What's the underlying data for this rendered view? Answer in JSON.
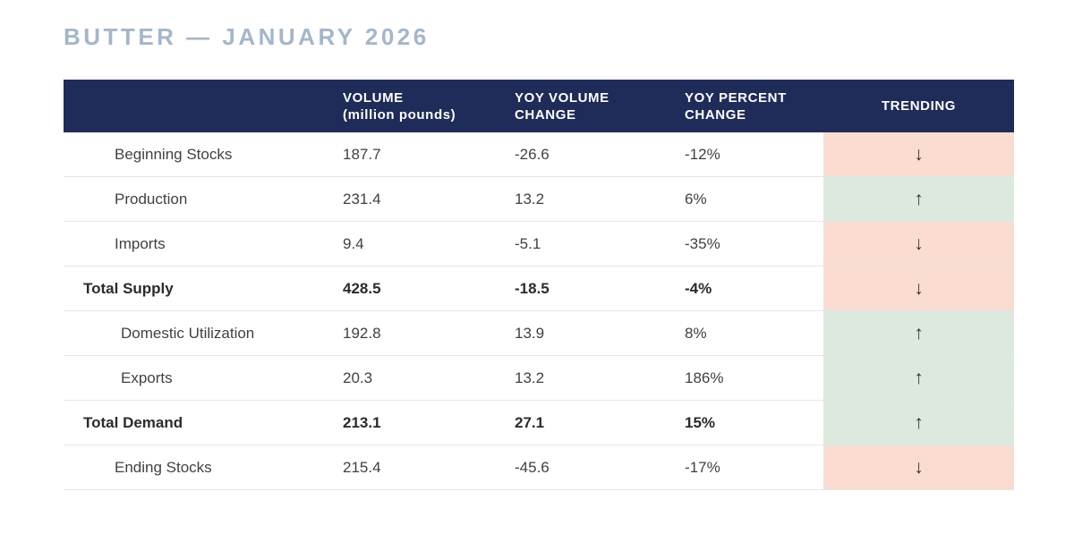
{
  "title": "BUTTER — JANUARY 2026",
  "colors": {
    "header_bg": "#1f2b58",
    "header_text": "#ffffff",
    "title_text": "#a4b6ca",
    "trend_up_bg": "#dce9df",
    "trend_down_bg": "#fadcd1",
    "arrow": "#35302b",
    "row_border": "#e4e7e9",
    "body_text": "#414141"
  },
  "icons": {
    "trend_up": "↑",
    "trend_down": "↓"
  },
  "table_headers": {
    "label": "",
    "volume_line1": "VOLUME",
    "volume_line2": "(million pounds)",
    "yoy_volume_line1": "YOY VOLUME",
    "yoy_volume_line2": "CHANGE",
    "yoy_percent_line1": "YOY PERCENT",
    "yoy_percent_line2": "CHANGE",
    "trending": "TRENDING"
  },
  "chart_data": {
    "type": "table",
    "title": "BUTTER — JANUARY 2026",
    "columns": [
      "",
      "VOLUME (million pounds)",
      "YOY VOLUME CHANGE",
      "YOY PERCENT CHANGE",
      "TRENDING"
    ],
    "rows": [
      {
        "label": "Beginning Stocks",
        "indent": 1,
        "emphasis": false,
        "volume": 187.7,
        "yoy_volume_change": -26.6,
        "yoy_percent_change": "-12%",
        "trending": "down"
      },
      {
        "label": "Production",
        "indent": 1,
        "emphasis": false,
        "volume": 231.4,
        "yoy_volume_change": 13.2,
        "yoy_percent_change": "6%",
        "trending": "up"
      },
      {
        "label": "Imports",
        "indent": 1,
        "emphasis": false,
        "volume": 9.4,
        "yoy_volume_change": -5.1,
        "yoy_percent_change": "-35%",
        "trending": "down"
      },
      {
        "label": "Total Supply",
        "indent": 0,
        "emphasis": true,
        "volume": 428.5,
        "yoy_volume_change": -18.5,
        "yoy_percent_change": "-4%",
        "trending": "down"
      },
      {
        "label": "Domestic Utilization",
        "indent": 2,
        "emphasis": false,
        "volume": 192.8,
        "yoy_volume_change": 13.9,
        "yoy_percent_change": "8%",
        "trending": "up"
      },
      {
        "label": "Exports",
        "indent": 2,
        "emphasis": false,
        "volume": 20.3,
        "yoy_volume_change": 13.2,
        "yoy_percent_change": "186%",
        "trending": "up"
      },
      {
        "label": "Total Demand",
        "indent": 0,
        "emphasis": true,
        "volume": 213.1,
        "yoy_volume_change": 27.1,
        "yoy_percent_change": "15%",
        "trending": "up"
      },
      {
        "label": "Ending Stocks",
        "indent": 1,
        "emphasis": false,
        "volume": 215.4,
        "yoy_volume_change": -45.6,
        "yoy_percent_change": "-17%",
        "trending": "down"
      }
    ]
  }
}
